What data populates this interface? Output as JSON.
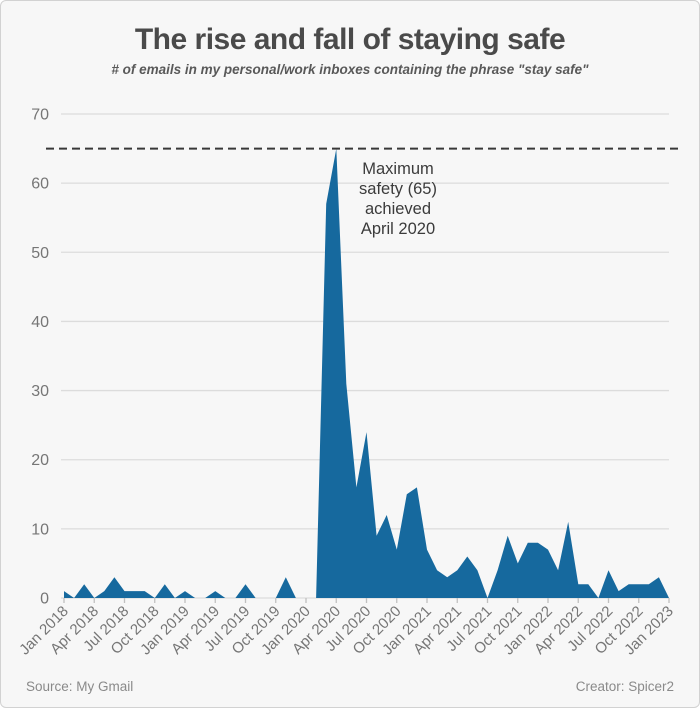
{
  "header": {
    "title": "The rise and fall of staying safe",
    "subtitle": "# of emails in my personal/work inboxes containing the phrase \"stay safe\""
  },
  "footer": {
    "source": "Source: My Gmail",
    "creator": "Creator: Spicer2"
  },
  "chart_data": {
    "type": "area",
    "title": "The rise and fall of staying safe",
    "subtitle": "# of emails in my personal/work inboxes containing the phrase \"stay safe\"",
    "x_unit": "month",
    "x_start": "Jan 2018",
    "x_end": "Jan 2023",
    "values": [
      1,
      0,
      2,
      0,
      1,
      3,
      1,
      1,
      1,
      0,
      2,
      0,
      1,
      0,
      0,
      1,
      0,
      0,
      2,
      0,
      0,
      0,
      3,
      0,
      0,
      0,
      57,
      65,
      31,
      16,
      24,
      9,
      12,
      7,
      15,
      16,
      7,
      4,
      3,
      4,
      6,
      4,
      0,
      4,
      9,
      5,
      8,
      8,
      7,
      4,
      11,
      2,
      2,
      0,
      4,
      1,
      2,
      2,
      2,
      3,
      0
    ],
    "x_tick_labels": [
      "Jan 2018",
      "Apr 2018",
      "Jul 2018",
      "Oct 2018",
      "Jan 2019",
      "Apr 2019",
      "Jul 2019",
      "Oct 2019",
      "Jan 2020",
      "Apr 2020",
      "Jul 2020",
      "Oct 2020",
      "Jan 2021",
      "Apr 2021",
      "Jul 2021",
      "Oct 2021",
      "Jan 2022",
      "Apr 2022",
      "Jul 2022",
      "Oct 2022",
      "Jan 2023"
    ],
    "x_tick_every_months": 3,
    "y_ticks": [
      0,
      10,
      20,
      30,
      40,
      50,
      60,
      70
    ],
    "ylim": [
      0,
      70
    ],
    "grid": "horizontal",
    "legend": "none",
    "max_line": {
      "value": 65,
      "style": "dashed"
    },
    "annotation": {
      "lines": [
        "Maximum",
        "safety (65)",
        "achieved",
        "April 2020"
      ]
    },
    "colors": {
      "area": "#16699e",
      "grid": "#dcdcdc",
      "dashed_line": "#383838",
      "tick_text": "#767676",
      "axis_tick": "#c0c0c0",
      "title_text": "#4a4a4a",
      "background": "#f7f7f7"
    }
  }
}
